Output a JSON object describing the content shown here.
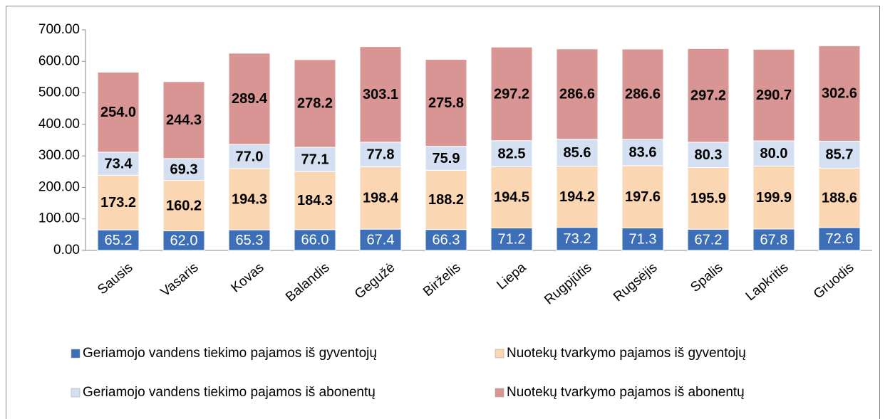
{
  "chart_data": {
    "type": "bar",
    "stacked": true,
    "categories": [
      "Sausis",
      "Vasaris",
      "Kovas",
      "Balandis",
      "Gegužė",
      "Birželis",
      "Liepa",
      "Rugpjūtis",
      "Rugsėjis",
      "Spalis",
      "Lapkritis",
      "Gruodis"
    ],
    "series": [
      {
        "name": "Geriamojo vandens tiekimo pajamos iš gyventojų",
        "color": "#3c6fb8",
        "values": [
          65.2,
          62.0,
          65.3,
          66.0,
          67.4,
          66.3,
          71.2,
          73.2,
          71.3,
          67.2,
          67.8,
          72.6
        ],
        "value_labels": [
          "65.2",
          "62.0",
          "65.3",
          "66.0",
          "67.4",
          "66.3",
          "71.2",
          "73.2",
          "71.3",
          "67.2",
          "67.8",
          "72.6"
        ]
      },
      {
        "name": "Nuotekų tvarkymo pajamos iš gyventojų",
        "color": "#fbd6b2",
        "values": [
          173.2,
          160.2,
          194.3,
          184.3,
          198.4,
          188.2,
          194.5,
          194.2,
          197.6,
          195.9,
          199.9,
          188.6
        ],
        "value_labels": [
          "173.2",
          "160.2",
          "194.3",
          "184.3",
          "198.4",
          "188.2",
          "194.5",
          "194.2",
          "197.6",
          "195.9",
          "199.9",
          "188.6"
        ]
      },
      {
        "name": "Geriamojo vandens tiekimo pajamos iš abonentų",
        "color": "#d4e0f1",
        "values": [
          73.4,
          69.3,
          77.0,
          77.1,
          77.8,
          75.9,
          82.5,
          85.6,
          83.6,
          80.3,
          80.0,
          85.7
        ],
        "value_labels": [
          "73.4",
          "69.3",
          "77.0",
          "77.1",
          "77.8",
          "75.9",
          "82.5",
          "85.6",
          "83.6",
          "80.3",
          "80.0",
          "85.7"
        ]
      },
      {
        "name": "Nuotekų tvarkymo pajamos iš abonentų",
        "color": "#d99594",
        "values": [
          254.0,
          244.3,
          289.4,
          278.2,
          303.1,
          275.8,
          297.2,
          286.6,
          286.6,
          297.2,
          290.7,
          302.6
        ],
        "value_labels": [
          "254.0",
          "244.3",
          "289.4",
          "278.2",
          "303.1",
          "275.8",
          "297.2",
          "286.6",
          "286.6",
          "297.2",
          "290.7",
          "302.6"
        ]
      }
    ],
    "ylim": [
      0,
      700
    ],
    "yticks": [
      {
        "value": 0,
        "label": "0.00"
      },
      {
        "value": 100,
        "label": "100.00"
      },
      {
        "value": 200,
        "label": "200.00"
      },
      {
        "value": 300,
        "label": "300.00"
      },
      {
        "value": 400,
        "label": "400.00"
      },
      {
        "value": 500,
        "label": "500.00"
      },
      {
        "value": 600,
        "label": "600.00"
      },
      {
        "value": 700,
        "label": "700.00"
      }
    ],
    "grid": false,
    "legend": "bottom"
  }
}
